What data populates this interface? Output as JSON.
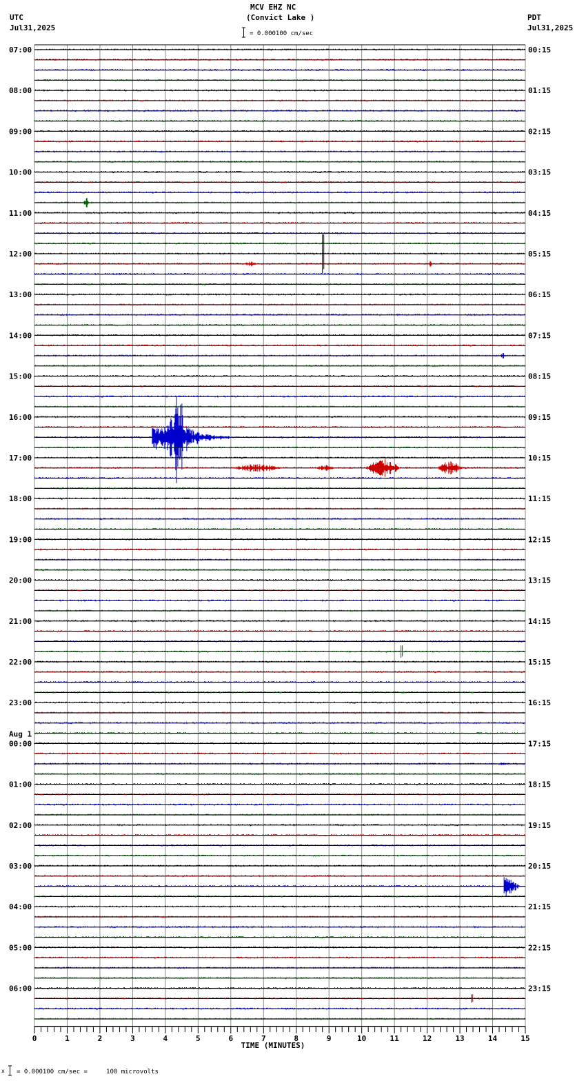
{
  "header": {
    "station": "MCV EHZ NC",
    "location": "(Convict Lake )",
    "scale": "= 0.000100 cm/sec",
    "left_tz": "UTC",
    "left_date": "Jul31,2025",
    "right_tz": "PDT",
    "right_date": "Jul31,2025"
  },
  "footer": {
    "scale_note": "= 0.000100 cm/sec =     100 microvolts",
    "prefix": "x"
  },
  "chart_data": {
    "type": "line",
    "title": "MCV EHZ NC (Convict Lake )",
    "xlabel": "TIME (MINUTES)",
    "ylabel": "",
    "xlim": [
      0,
      15
    ],
    "x_ticks": [
      "0",
      "1",
      "2",
      "3",
      "4",
      "5",
      "6",
      "7",
      "8",
      "9",
      "10",
      "11",
      "12",
      "13",
      "14",
      "15"
    ],
    "grid": true,
    "trace_colors": [
      "#000000",
      "#cc0000",
      "#0000cc",
      "#006600"
    ],
    "traces_per_hour": 4,
    "left_hour_labels": [
      "07:00",
      "08:00",
      "09:00",
      "10:00",
      "11:00",
      "12:00",
      "13:00",
      "14:00",
      "15:00",
      "16:00",
      "17:00",
      "18:00",
      "19:00",
      "20:00",
      "21:00",
      "22:00",
      "23:00",
      "00:00",
      "01:00",
      "02:00",
      "03:00",
      "04:00",
      "05:00",
      "06:00"
    ],
    "day_change_label": {
      "index": 17,
      "text": "Aug 1"
    },
    "right_hour_labels": [
      "00:15",
      "01:15",
      "02:15",
      "03:15",
      "04:15",
      "05:15",
      "06:15",
      "07:15",
      "08:15",
      "09:15",
      "10:15",
      "11:15",
      "12:15",
      "13:15",
      "14:15",
      "15:15",
      "16:15",
      "17:15",
      "18:15",
      "19:15",
      "20:15",
      "21:15",
      "22:15",
      "23:15"
    ],
    "events": [
      {
        "trace": 15,
        "minute": 1.5,
        "amp": 6,
        "dur": 0.2,
        "color": "#006600"
      },
      {
        "trace": 20,
        "minute": 8.8,
        "amp": 28,
        "dur": 0.15,
        "color": "#000000",
        "type": "spike"
      },
      {
        "trace": 21,
        "minute": 6.4,
        "amp": 3,
        "dur": 0.4,
        "color": "#cc0000"
      },
      {
        "trace": 21,
        "minute": 12.05,
        "amp": 4,
        "dur": 0.1,
        "color": "#cc0000"
      },
      {
        "trace": 30,
        "minute": 14.25,
        "amp": 5,
        "dur": 0.15,
        "color": "#0000cc"
      },
      {
        "trace": 38,
        "minute": 3.6,
        "amp": 18,
        "dur": 2.4,
        "color": "#0000cc",
        "type": "quake",
        "peak": 4.4,
        "peak_amp": 85
      },
      {
        "trace": 41,
        "minute": 6.0,
        "amp": 5,
        "dur": 1.6,
        "color": "#cc0000"
      },
      {
        "trace": 41,
        "minute": 8.6,
        "amp": 4,
        "dur": 0.6,
        "color": "#cc0000"
      },
      {
        "trace": 41,
        "minute": 10.1,
        "amp": 11,
        "dur": 1.1,
        "color": "#cc0000"
      },
      {
        "trace": 41,
        "minute": 12.3,
        "amp": 8,
        "dur": 0.8,
        "color": "#cc0000"
      },
      {
        "trace": 59,
        "minute": 11.2,
        "amp": 9,
        "dur": 0.1,
        "color": "#006600",
        "type": "spike"
      },
      {
        "trace": 70,
        "minute": 14.2,
        "amp": 3,
        "dur": 0.3,
        "color": "#0000cc"
      },
      {
        "trace": 82,
        "minute": 14.35,
        "amp": 18,
        "dur": 0.5,
        "color": "#0000cc",
        "type": "quake",
        "peak": 14.4,
        "peak_amp": 20
      },
      {
        "trace": 93,
        "minute": 13.35,
        "amp": 6,
        "dur": 0.1,
        "color": "#cc0000",
        "type": "spike"
      }
    ]
  }
}
